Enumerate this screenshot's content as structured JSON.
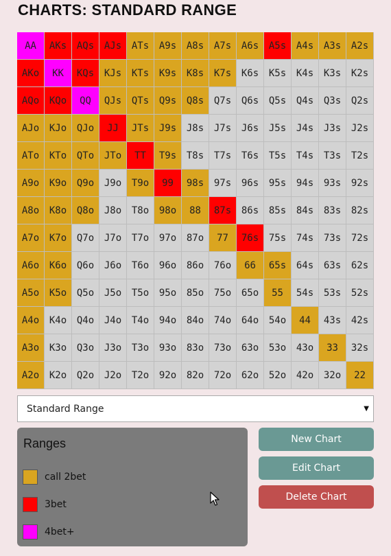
{
  "page_title": "CHARTS: STANDARD RANGE",
  "colors": {
    "call": "#daa520",
    "threebet": "#ff0000",
    "fourbet": "#ff00ff",
    "none": "#d3d3d3",
    "btn_teal": "#6a9994",
    "btn_red": "#c04f4e",
    "panel": "#7b7b7b"
  },
  "grid": {
    "rows": [
      [
        [
          "AA",
          "fourbet"
        ],
        [
          "AKs",
          "threebet"
        ],
        [
          "AQs",
          "threebet"
        ],
        [
          "AJs",
          "threebet"
        ],
        [
          "ATs",
          "call"
        ],
        [
          "A9s",
          "call"
        ],
        [
          "A8s",
          "call"
        ],
        [
          "A7s",
          "call"
        ],
        [
          "A6s",
          "call"
        ],
        [
          "A5s",
          "threebet"
        ],
        [
          "A4s",
          "call"
        ],
        [
          "A3s",
          "call"
        ],
        [
          "A2s",
          "call"
        ]
      ],
      [
        [
          "AKo",
          "threebet"
        ],
        [
          "KK",
          "fourbet"
        ],
        [
          "KQs",
          "threebet"
        ],
        [
          "KJs",
          "call"
        ],
        [
          "KTs",
          "call"
        ],
        [
          "K9s",
          "call"
        ],
        [
          "K8s",
          "call"
        ],
        [
          "K7s",
          "call"
        ],
        [
          "K6s",
          "none"
        ],
        [
          "K5s",
          "none"
        ],
        [
          "K4s",
          "none"
        ],
        [
          "K3s",
          "none"
        ],
        [
          "K2s",
          "none"
        ]
      ],
      [
        [
          "AQo",
          "threebet"
        ],
        [
          "KQo",
          "threebet"
        ],
        [
          "QQ",
          "fourbet"
        ],
        [
          "QJs",
          "call"
        ],
        [
          "QTs",
          "call"
        ],
        [
          "Q9s",
          "call"
        ],
        [
          "Q8s",
          "call"
        ],
        [
          "Q7s",
          "none"
        ],
        [
          "Q6s",
          "none"
        ],
        [
          "Q5s",
          "none"
        ],
        [
          "Q4s",
          "none"
        ],
        [
          "Q3s",
          "none"
        ],
        [
          "Q2s",
          "none"
        ]
      ],
      [
        [
          "AJo",
          "call"
        ],
        [
          "KJo",
          "call"
        ],
        [
          "QJo",
          "call"
        ],
        [
          "JJ",
          "threebet"
        ],
        [
          "JTs",
          "call"
        ],
        [
          "J9s",
          "call"
        ],
        [
          "J8s",
          "none"
        ],
        [
          "J7s",
          "none"
        ],
        [
          "J6s",
          "none"
        ],
        [
          "J5s",
          "none"
        ],
        [
          "J4s",
          "none"
        ],
        [
          "J3s",
          "none"
        ],
        [
          "J2s",
          "none"
        ]
      ],
      [
        [
          "ATo",
          "call"
        ],
        [
          "KTo",
          "call"
        ],
        [
          "QTo",
          "call"
        ],
        [
          "JTo",
          "call"
        ],
        [
          "TT",
          "threebet"
        ],
        [
          "T9s",
          "call"
        ],
        [
          "T8s",
          "none"
        ],
        [
          "T7s",
          "none"
        ],
        [
          "T6s",
          "none"
        ],
        [
          "T5s",
          "none"
        ],
        [
          "T4s",
          "none"
        ],
        [
          "T3s",
          "none"
        ],
        [
          "T2s",
          "none"
        ]
      ],
      [
        [
          "A9o",
          "call"
        ],
        [
          "K9o",
          "call"
        ],
        [
          "Q9o",
          "call"
        ],
        [
          "J9o",
          "none"
        ],
        [
          "T9o",
          "call"
        ],
        [
          "99",
          "threebet"
        ],
        [
          "98s",
          "call"
        ],
        [
          "97s",
          "none"
        ],
        [
          "96s",
          "none"
        ],
        [
          "95s",
          "none"
        ],
        [
          "94s",
          "none"
        ],
        [
          "93s",
          "none"
        ],
        [
          "92s",
          "none"
        ]
      ],
      [
        [
          "A8o",
          "call"
        ],
        [
          "K8o",
          "call"
        ],
        [
          "Q8o",
          "call"
        ],
        [
          "J8o",
          "none"
        ],
        [
          "T8o",
          "none"
        ],
        [
          "98o",
          "call"
        ],
        [
          "88",
          "call"
        ],
        [
          "87s",
          "threebet"
        ],
        [
          "86s",
          "none"
        ],
        [
          "85s",
          "none"
        ],
        [
          "84s",
          "none"
        ],
        [
          "83s",
          "none"
        ],
        [
          "82s",
          "none"
        ]
      ],
      [
        [
          "A7o",
          "call"
        ],
        [
          "K7o",
          "call"
        ],
        [
          "Q7o",
          "none"
        ],
        [
          "J7o",
          "none"
        ],
        [
          "T7o",
          "none"
        ],
        [
          "97o",
          "none"
        ],
        [
          "87o",
          "none"
        ],
        [
          "77",
          "call"
        ],
        [
          "76s",
          "threebet"
        ],
        [
          "75s",
          "none"
        ],
        [
          "74s",
          "none"
        ],
        [
          "73s",
          "none"
        ],
        [
          "72s",
          "none"
        ]
      ],
      [
        [
          "A6o",
          "call"
        ],
        [
          "K6o",
          "call"
        ],
        [
          "Q6o",
          "none"
        ],
        [
          "J6o",
          "none"
        ],
        [
          "T6o",
          "none"
        ],
        [
          "96o",
          "none"
        ],
        [
          "86o",
          "none"
        ],
        [
          "76o",
          "none"
        ],
        [
          "66",
          "call"
        ],
        [
          "65s",
          "call"
        ],
        [
          "64s",
          "none"
        ],
        [
          "63s",
          "none"
        ],
        [
          "62s",
          "none"
        ]
      ],
      [
        [
          "A5o",
          "call"
        ],
        [
          "K5o",
          "call"
        ],
        [
          "Q5o",
          "none"
        ],
        [
          "J5o",
          "none"
        ],
        [
          "T5o",
          "none"
        ],
        [
          "95o",
          "none"
        ],
        [
          "85o",
          "none"
        ],
        [
          "75o",
          "none"
        ],
        [
          "65o",
          "none"
        ],
        [
          "55",
          "call"
        ],
        [
          "54s",
          "none"
        ],
        [
          "53s",
          "none"
        ],
        [
          "52s",
          "none"
        ]
      ],
      [
        [
          "A4o",
          "call"
        ],
        [
          "K4o",
          "none"
        ],
        [
          "Q4o",
          "none"
        ],
        [
          "J4o",
          "none"
        ],
        [
          "T4o",
          "none"
        ],
        [
          "94o",
          "none"
        ],
        [
          "84o",
          "none"
        ],
        [
          "74o",
          "none"
        ],
        [
          "64o",
          "none"
        ],
        [
          "54o",
          "none"
        ],
        [
          "44",
          "call"
        ],
        [
          "43s",
          "none"
        ],
        [
          "42s",
          "none"
        ]
      ],
      [
        [
          "A3o",
          "call"
        ],
        [
          "K3o",
          "none"
        ],
        [
          "Q3o",
          "none"
        ],
        [
          "J3o",
          "none"
        ],
        [
          "T3o",
          "none"
        ],
        [
          "93o",
          "none"
        ],
        [
          "83o",
          "none"
        ],
        [
          "73o",
          "none"
        ],
        [
          "63o",
          "none"
        ],
        [
          "53o",
          "none"
        ],
        [
          "43o",
          "none"
        ],
        [
          "33",
          "call"
        ],
        [
          "32s",
          "none"
        ]
      ],
      [
        [
          "A2o",
          "call"
        ],
        [
          "K2o",
          "none"
        ],
        [
          "Q2o",
          "none"
        ],
        [
          "J2o",
          "none"
        ],
        [
          "T2o",
          "none"
        ],
        [
          "92o",
          "none"
        ],
        [
          "82o",
          "none"
        ],
        [
          "72o",
          "none"
        ],
        [
          "62o",
          "none"
        ],
        [
          "52o",
          "none"
        ],
        [
          "42o",
          "none"
        ],
        [
          "32o",
          "none"
        ],
        [
          "22",
          "call"
        ]
      ]
    ]
  },
  "range_select": {
    "selected": "Standard Range",
    "arrow": "▼"
  },
  "legend": {
    "title": "Ranges",
    "items": [
      {
        "label": "call 2bet",
        "color_key": "call"
      },
      {
        "label": "3bet",
        "color_key": "threebet"
      },
      {
        "label": "4bet+",
        "color_key": "fourbet"
      }
    ]
  },
  "buttons": {
    "new_chart": "New Chart",
    "edit_chart": "Edit Chart",
    "delete_chart": "Delete Chart"
  }
}
